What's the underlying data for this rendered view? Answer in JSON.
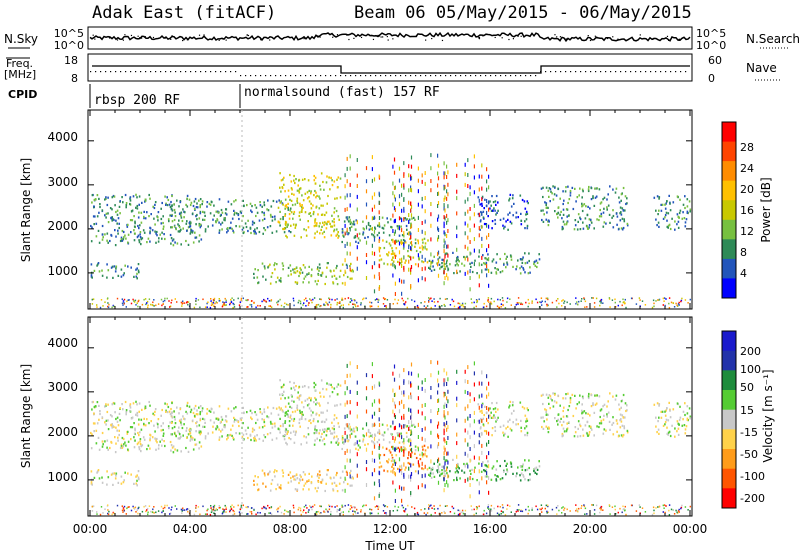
{
  "header": {
    "title": "Adak East (fitACF)",
    "beam_info": "Beam 06 05/May/2015 - 06/May/2015"
  },
  "side_labels": {
    "nsky": "N.Sky",
    "freq_line1": "Freq.",
    "freq_line2": "[MHz]",
    "cpid": "CPID",
    "nsearch": "N.Search",
    "nave": "Nave"
  },
  "cpid_segments": [
    {
      "label": "rbsp 200 RF",
      "start_hour": 0
    },
    {
      "label": "normalsound (fast) 157 RF",
      "start_hour": 6
    }
  ],
  "noise_panel": {
    "left_ticks": [
      "10^5",
      "10^0"
    ],
    "right_ticks": [
      "10^5",
      "10^0"
    ]
  },
  "freq_panel": {
    "left_ticks": [
      "18",
      "8"
    ],
    "right_ticks": [
      "60",
      "0"
    ]
  },
  "x_axis": {
    "label": "Time UT",
    "ticks": [
      "00:00",
      "04:00",
      "08:00",
      "12:00",
      "16:00",
      "20:00",
      "00:00"
    ],
    "range_hours": [
      0,
      24
    ]
  },
  "power_panel": {
    "ylabel": "Slant Range [km]",
    "y_ticks": [
      "4000",
      "3000",
      "2000",
      "1000"
    ],
    "colorbar_label": "Power [dB]",
    "colorbar_ticks": [
      "28",
      "24",
      "20",
      "16",
      "12",
      "8",
      "4"
    ],
    "colors": [
      "#ff0000",
      "#ff4400",
      "#ff8c00",
      "#ffc000",
      "#c8c800",
      "#77c040",
      "#2e8a57",
      "#2255bb",
      "#0000ff"
    ]
  },
  "velocity_panel": {
    "ylabel": "Slant Range [km]",
    "y_ticks": [
      "4000",
      "3000",
      "2000",
      "1000"
    ],
    "colorbar_label": "Velocity [m s⁻¹]",
    "colorbar_ticks": [
      "200",
      "100",
      "50",
      "15",
      "-15",
      "-50",
      "-100",
      "-200"
    ],
    "colors": [
      "#1a1acc",
      "#2233aa",
      "#1e8c3c",
      "#55cc33",
      "#c8c8c8",
      "#ffd24a",
      "#ff9c1a",
      "#ff5500",
      "#ff0000"
    ]
  },
  "chart_data": {
    "type": "heatmap",
    "title": "Adak East (fitACF)",
    "xlabel": "Time UT",
    "ylabel": "Slant Range [km]",
    "xlim": [
      0,
      24
    ],
    "ylim": [
      180,
      4700
    ],
    "regions": [
      {
        "name": "band-morning",
        "t0": 0.0,
        "t1": 4.5,
        "r0": 1650,
        "r1": 2800,
        "power_class": 2,
        "velocity_class": 4
      },
      {
        "name": "band-rising",
        "t0": 3.5,
        "t1": 8.0,
        "r0": 1900,
        "r1": 2700,
        "power_class": 2,
        "velocity_class": 4
      },
      {
        "name": "band-lower-morning",
        "t0": 0.0,
        "t1": 2.0,
        "r0": 900,
        "r1": 1250,
        "power_class": 2,
        "velocity_class": 4
      },
      {
        "name": "band-main-0730",
        "t0": 7.5,
        "t1": 10.0,
        "r0": 1800,
        "r1": 3300,
        "power_class": 4,
        "velocity_class": 4
      },
      {
        "name": "band-lower-0800",
        "t0": 6.5,
        "t1": 10.5,
        "r0": 750,
        "r1": 1250,
        "power_class": 3,
        "velocity_class": 3
      },
      {
        "name": "band-1200",
        "t0": 11.5,
        "t1": 13.5,
        "r0": 1200,
        "r1": 1800,
        "power_class": 4,
        "velocity_class": 2
      },
      {
        "name": "band-1200-upper",
        "t0": 10.0,
        "t1": 13.0,
        "r0": 1700,
        "r1": 2300,
        "power_class": 2,
        "velocity_class": 4
      },
      {
        "name": "band-afternoon",
        "t0": 13.5,
        "t1": 18.0,
        "r0": 1000,
        "r1": 1500,
        "power_class": 2,
        "velocity_class": 5
      },
      {
        "name": "band-1600",
        "t0": 15.5,
        "t1": 17.5,
        "r0": 2000,
        "r1": 2800,
        "power_class": 1,
        "velocity_class": 4
      },
      {
        "name": "band-evening",
        "t0": 18.0,
        "t1": 21.5,
        "r0": 2000,
        "r1": 3000,
        "power_class": 2,
        "velocity_class": 4
      },
      {
        "name": "band-late",
        "t0": 22.5,
        "t1": 24.0,
        "r0": 2000,
        "r1": 2800,
        "power_class": 2,
        "velocity_class": 4
      }
    ]
  }
}
